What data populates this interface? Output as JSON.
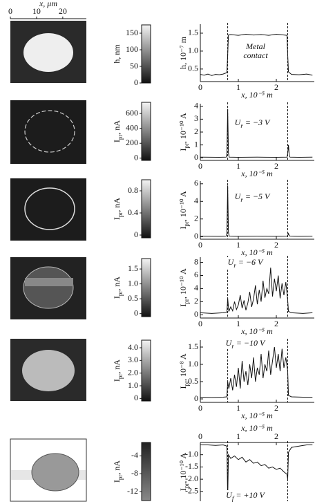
{
  "chart_data": [
    {
      "type": "line",
      "ylabel": "h, 10⁻⁷ m",
      "xlabel": "x, 10⁻⁵ m",
      "annotation": [
        "Metal",
        "contact"
      ],
      "xlim": [
        0,
        3
      ],
      "xticks": [
        0,
        1,
        2
      ],
      "ylim": [
        0.15,
        1.75
      ],
      "yticks": [
        0.5,
        {
          "value": 1,
          "label": "1.0"
        },
        1.5
      ],
      "vlines": [
        0.72,
        2.3
      ],
      "x": [
        0,
        0.1,
        0.2,
        0.3,
        0.4,
        0.5,
        0.6,
        0.7,
        0.72,
        0.74,
        0.8,
        1.0,
        1.2,
        1.4,
        1.6,
        1.8,
        2.0,
        2.2,
        2.28,
        2.3,
        2.32,
        2.4,
        2.6,
        2.8,
        2.95
      ],
      "values": [
        0.35,
        0.33,
        0.36,
        0.32,
        0.35,
        0.34,
        0.36,
        0.4,
        0.9,
        1.45,
        1.46,
        1.44,
        1.47,
        1.45,
        1.46,
        1.44,
        1.47,
        1.45,
        1.44,
        0.9,
        0.42,
        0.35,
        0.34,
        0.36,
        0.33
      ],
      "color": "#111",
      "colorbar": {
        "label": "h, nm",
        "lim": [
          0,
          175
        ],
        "ticks": [
          0,
          50,
          100,
          150
        ]
      },
      "image_axis": {
        "label": "x, μm",
        "lim": [
          0,
          29
        ],
        "ticks": [
          0,
          10,
          20
        ]
      }
    },
    {
      "type": "line",
      "ylabel": {
        "base": "I",
        "sub": "pr",
        "rest": ", 10⁻¹⁰ A"
      },
      "xlabel": "x, 10⁻⁵ m",
      "annotation": {
        "base": "U",
        "sub": "r",
        "rest": " = −3 V"
      },
      "xlim": [
        0,
        3
      ],
      "xticks": [
        0,
        1,
        2
      ],
      "ylim": [
        -0.2,
        4.2
      ],
      "yticks": [
        0,
        1,
        2,
        3,
        4
      ],
      "vlines": [
        0.72,
        2.3
      ],
      "x": [
        0,
        0.5,
        0.68,
        0.7,
        0.72,
        0.74,
        0.76,
        1.0,
        1.5,
        2.0,
        2.28,
        2.3,
        2.32,
        2.34,
        2.36,
        2.6,
        2.95
      ],
      "values": [
        0.05,
        0.04,
        0.05,
        0.3,
        3.8,
        0.4,
        0.05,
        0.04,
        0.05,
        0.04,
        0.05,
        0.3,
        1.0,
        0.2,
        0.05,
        0.04,
        0.05
      ],
      "color": "#111",
      "colorbar": {
        "label": {
          "base": "I",
          "sub": "pr",
          "rest": ", nA"
        },
        "lim": [
          -30,
          750
        ],
        "ticks": [
          0,
          200,
          400,
          600
        ]
      }
    },
    {
      "type": "line",
      "ylabel": {
        "base": "I",
        "sub": "pr",
        "rest": ", 10⁻¹⁰ A"
      },
      "xlabel": "x, 10⁻⁵ m",
      "annotation": {
        "base": "U",
        "sub": "r",
        "rest": " = −5 V"
      },
      "xlim": [
        0,
        3
      ],
      "xticks": [
        0,
        1,
        2
      ],
      "ylim": [
        -0.3,
        6.3
      ],
      "yticks": [
        0,
        2,
        4,
        6
      ],
      "vlines": [
        0.72,
        2.3
      ],
      "x": [
        0,
        0.5,
        0.68,
        0.7,
        0.72,
        0.74,
        0.76,
        1.0,
        1.5,
        2.0,
        2.28,
        2.3,
        2.32,
        2.34,
        2.36,
        2.6,
        2.95
      ],
      "values": [
        0.05,
        0.04,
        0.05,
        0.4,
        5.8,
        0.5,
        0.05,
        0.04,
        0.05,
        0.04,
        0.05,
        0.1,
        0.35,
        0.1,
        0.05,
        0.04,
        0.05
      ],
      "color": "#111",
      "colorbar": {
        "label": {
          "base": "I",
          "sub": "pr",
          "rest": ", nA"
        },
        "lim": [
          -0.05,
          1.0
        ],
        "ticks": [
          0,
          0.4,
          0.8
        ]
      }
    },
    {
      "type": "line",
      "ylabel": {
        "base": "I",
        "sub": "pr",
        "rest": ", 10⁻¹⁰ A"
      },
      "xlabel": "x, 10⁻⁵ m",
      "annotation": {
        "base": "U",
        "sub": "r",
        "rest": " = −6 V"
      },
      "xlim": [
        0,
        3
      ],
      "xticks": [
        0,
        1,
        2
      ],
      "ylim": [
        -0.5,
        8.8
      ],
      "yticks": [
        0,
        2,
        4,
        6,
        8
      ],
      "vlines": [
        0.72,
        2.3
      ],
      "x": [
        0,
        0.3,
        0.6,
        0.7,
        0.72,
        0.75,
        0.8,
        0.85,
        0.9,
        0.95,
        1.0,
        1.05,
        1.1,
        1.15,
        1.2,
        1.25,
        1.3,
        1.35,
        1.4,
        1.45,
        1.5,
        1.55,
        1.6,
        1.65,
        1.7,
        1.75,
        1.8,
        1.85,
        1.9,
        1.95,
        2.0,
        2.05,
        2.1,
        2.15,
        2.2,
        2.25,
        2.3,
        2.32,
        2.4,
        2.7,
        2.95
      ],
      "values": [
        0.3,
        0.2,
        0.3,
        0.4,
        2.5,
        0.5,
        1.2,
        0.6,
        2.0,
        0.8,
        1.5,
        3.0,
        1.0,
        2.2,
        0.7,
        1.8,
        3.5,
        1.2,
        2.4,
        4.5,
        1.6,
        3.8,
        2.0,
        5.2,
        2.6,
        4.0,
        3.2,
        7.2,
        2.8,
        5.5,
        3.6,
        6.0,
        2.5,
        4.8,
        3.0,
        5.0,
        2.2,
        0.5,
        0.3,
        0.2,
        0.3
      ],
      "color": "#111",
      "colorbar": {
        "label": {
          "base": "I",
          "sub": "pr",
          "rest": ", nA"
        },
        "lim": [
          -0.1,
          1.85
        ],
        "ticks": [
          0,
          0.5,
          {
            "value": 1,
            "label": "1.0"
          },
          1.5
        ]
      }
    },
    {
      "type": "line",
      "ylabel": {
        "base": "I",
        "sub": "pr",
        "rest": ", 10⁻⁸ A"
      },
      "xlabel": "x, 10⁻⁵ m",
      "annotation": {
        "base": "U",
        "sub": "r",
        "rest": " = −10 V"
      },
      "xlim": [
        0,
        3
      ],
      "xticks": [
        0,
        1,
        2
      ],
      "ylim": [
        -0.1,
        1.7
      ],
      "yticks": [
        0,
        0.5,
        {
          "value": 1,
          "label": "1.0"
        },
        1.5
      ],
      "vlines": [
        0.72,
        2.3
      ],
      "x": [
        0,
        0.3,
        0.6,
        0.7,
        0.72,
        0.75,
        0.8,
        0.85,
        0.9,
        0.95,
        1.0,
        1.05,
        1.1,
        1.15,
        1.2,
        1.25,
        1.3,
        1.35,
        1.4,
        1.45,
        1.5,
        1.55,
        1.6,
        1.65,
        1.7,
        1.75,
        1.8,
        1.85,
        1.9,
        1.95,
        2.0,
        2.05,
        2.1,
        2.15,
        2.2,
        2.25,
        2.3,
        2.32,
        2.4,
        2.7,
        2.95
      ],
      "values": [
        0.05,
        0.04,
        0.05,
        0.06,
        0.5,
        0.3,
        0.6,
        0.25,
        0.7,
        0.35,
        0.9,
        0.3,
        1.1,
        0.5,
        0.8,
        0.4,
        1.0,
        0.6,
        1.2,
        0.5,
        0.9,
        0.7,
        1.3,
        0.6,
        1.0,
        0.8,
        1.4,
        0.7,
        1.1,
        1.5,
        0.9,
        1.3,
        0.8,
        1.45,
        0.9,
        1.2,
        0.8,
        0.1,
        0.06,
        0.05,
        0.05
      ],
      "color": "#111",
      "colorbar": {
        "label": {
          "base": "I",
          "sub": "pr",
          "rest": ", nA"
        },
        "lim": [
          -0.2,
          4.6
        ],
        "ticks": [
          0,
          {
            "value": 1,
            "label": "1.0"
          },
          {
            "value": 2,
            "label": "2.0"
          },
          {
            "value": 3,
            "label": "3.0"
          },
          {
            "value": 4,
            "label": "4.0"
          }
        ]
      }
    },
    {
      "type": "line",
      "ylabel": {
        "base": "I",
        "sub": "pr",
        "rest": ", 10⁻¹⁰ A"
      },
      "xlabel": "x, 10⁻⁵ m",
      "annotation": {
        "base": "U",
        "sub": "f",
        "rest": " = +10 V"
      },
      "xlim": [
        0,
        3
      ],
      "xticks": [
        0,
        1,
        2
      ],
      "ylim": [
        -2.9,
        -0.5
      ],
      "yticks": [
        {
          "value": -1,
          "label": "-1.0"
        },
        -1.5,
        {
          "value": -2,
          "label": "-2.0"
        },
        -2.5
      ],
      "vlines": [
        0.72,
        2.3
      ],
      "x": [
        0,
        0.2,
        0.4,
        0.6,
        0.7,
        0.72,
        0.74,
        0.8,
        0.9,
        1.0,
        1.1,
        1.2,
        1.3,
        1.4,
        1.5,
        1.6,
        1.7,
        1.8,
        1.9,
        2.0,
        2.1,
        2.2,
        2.28,
        2.3,
        2.32,
        2.4,
        2.6,
        2.8,
        2.95
      ],
      "values": [
        -0.6,
        -0.6,
        -0.62,
        -0.6,
        -0.65,
        -2.8,
        -1.0,
        -1.15,
        -1.05,
        -1.2,
        -1.1,
        -1.3,
        -1.2,
        -1.35,
        -1.3,
        -1.45,
        -1.4,
        -1.55,
        -1.5,
        -1.6,
        -1.55,
        -1.7,
        -1.8,
        -2.0,
        -0.9,
        -0.7,
        -0.65,
        -0.6,
        -0.6
      ],
      "color": "#111",
      "colorbar": {
        "label": {
          "base": "I",
          "sub": "pr",
          "rest": ", nA"
        },
        "lim": [
          -14,
          -1
        ],
        "ticks": [
          -4,
          -8,
          -12
        ]
      }
    }
  ]
}
